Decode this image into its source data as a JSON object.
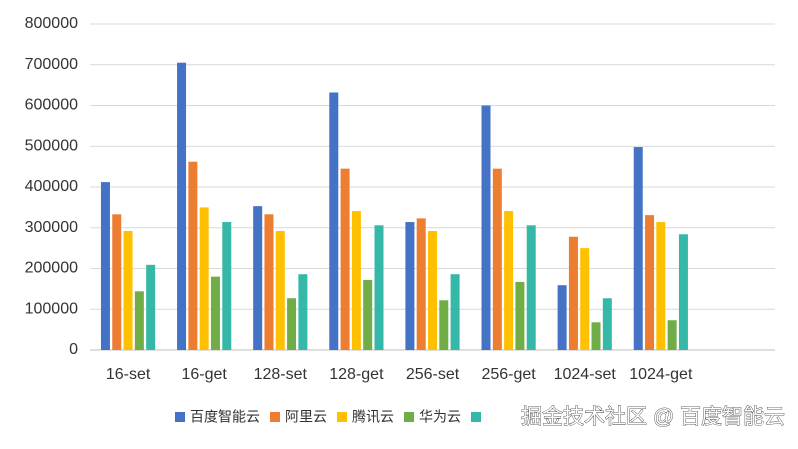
{
  "chart_data": {
    "type": "bar",
    "categories": [
      "16-set",
      "16-get",
      "128-set",
      "128-get",
      "256-set",
      "256-get",
      "1024-set",
      "1024-get",
      null
    ],
    "series": [
      {
        "name": "百度智能云",
        "color": "#4472c4",
        "values": [
          412000,
          705000,
          353000,
          632000,
          314000,
          600000,
          159000,
          498000,
          null
        ]
      },
      {
        "name": "阿里云",
        "color": "#ed7d31",
        "values": [
          333000,
          462000,
          333000,
          445000,
          323000,
          445000,
          278000,
          331000,
          null
        ]
      },
      {
        "name": "腾讯云",
        "color": "#ffc000",
        "values": [
          292000,
          350000,
          292000,
          341000,
          292000,
          341000,
          250000,
          314000,
          null
        ]
      },
      {
        "name": "华为云",
        "color": "#70ad47",
        "values": [
          144000,
          180000,
          127000,
          172000,
          122000,
          167000,
          68000,
          73000,
          null
        ]
      },
      {
        "color": "#36b8a8",
        "values": [
          209000,
          314000,
          186000,
          306000,
          186000,
          306000,
          127000,
          284000,
          null
        ]
      }
    ],
    "ylim": [
      0,
      800000
    ],
    "yticks": [
      0,
      100000,
      200000,
      300000,
      400000,
      500000,
      600000,
      700000,
      800000
    ],
    "grid": true,
    "watermark": "掘金技术社区 @ 百度智能云"
  }
}
